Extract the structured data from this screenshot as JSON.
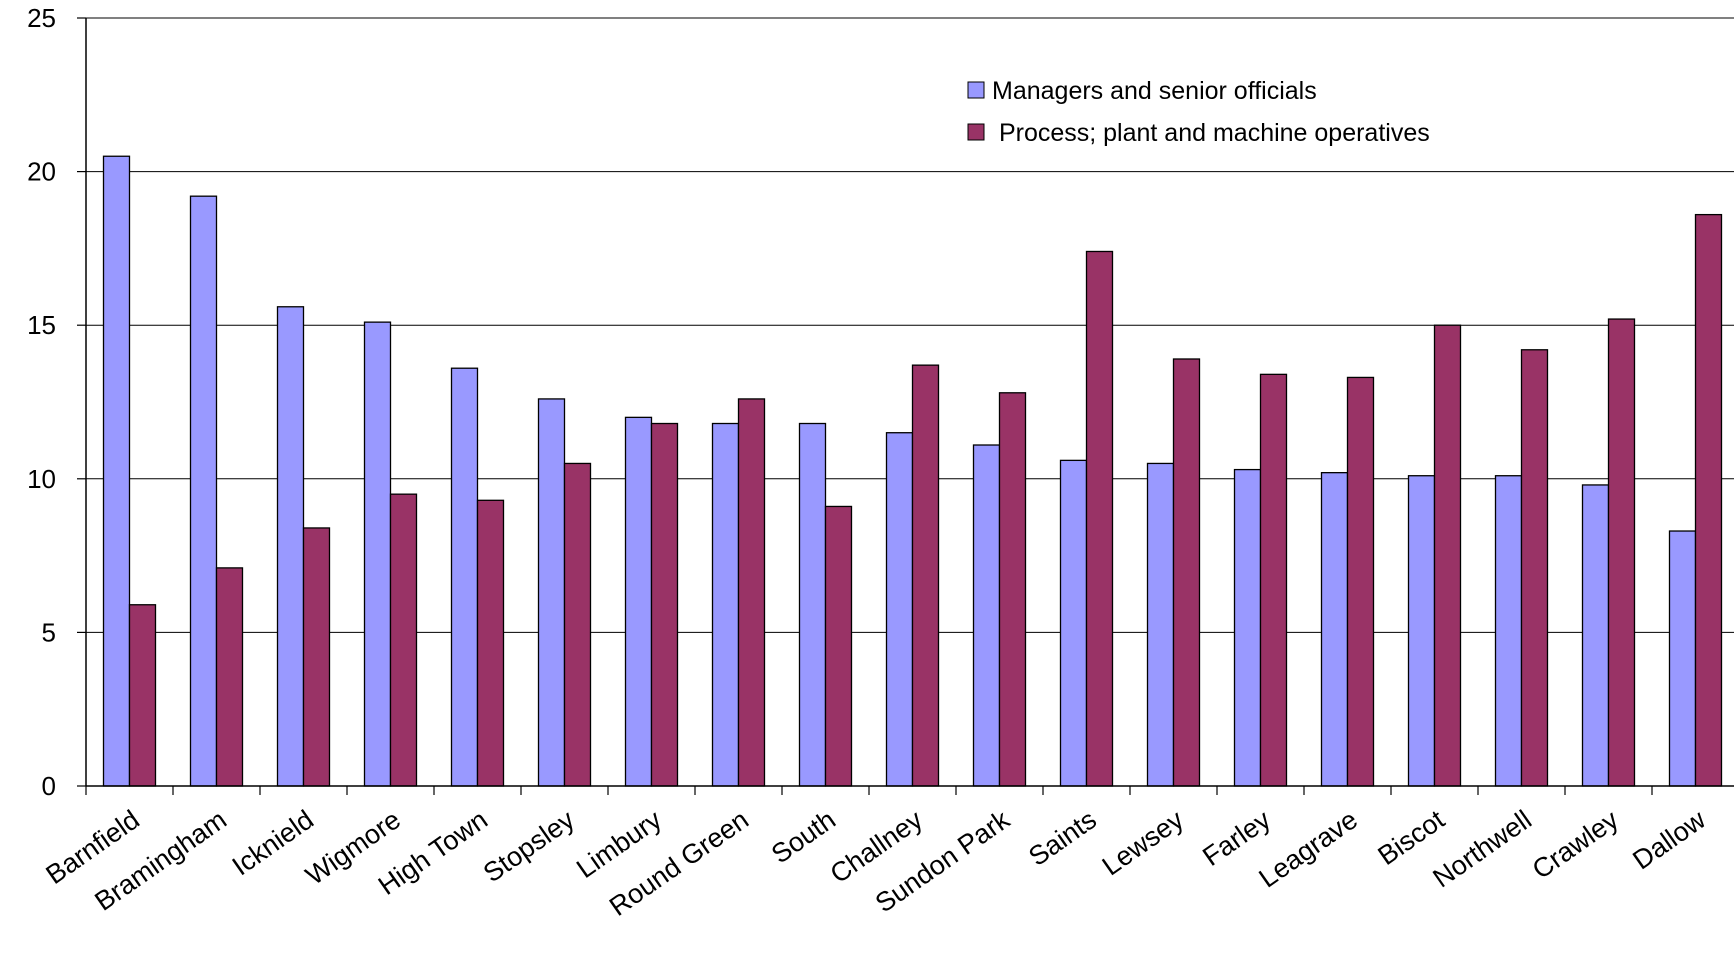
{
  "chart_data": {
    "type": "bar",
    "title": "",
    "xlabel": "",
    "ylabel": "",
    "ylim": [
      0,
      25
    ],
    "yticks": [
      0,
      5,
      10,
      15,
      20,
      25
    ],
    "grid": true,
    "legend_position": "top-right",
    "categories": [
      "Barnfield",
      "Bramingham",
      "Icknield",
      "Wigmore",
      "High Town",
      "Stopsley",
      "Limbury",
      "Round Green",
      "South",
      "Challney",
      "Sundon Park",
      "Saints",
      "Lewsey",
      "Farley",
      "Leagrave",
      "Biscot",
      "Northwell",
      "Crawley",
      "Dallow"
    ],
    "series": [
      {
        "name": "Managers and senior officials",
        "color": "#9999ff",
        "values": [
          20.5,
          19.2,
          15.6,
          15.1,
          13.6,
          12.6,
          12.0,
          11.8,
          11.8,
          11.5,
          11.1,
          10.6,
          10.5,
          10.3,
          10.2,
          10.1,
          10.1,
          9.8,
          8.3
        ]
      },
      {
        "name": " Process; plant and machine operatives",
        "color": "#993366",
        "values": [
          5.9,
          7.1,
          8.4,
          9.5,
          9.3,
          10.5,
          11.8,
          12.6,
          9.1,
          13.7,
          12.8,
          17.4,
          13.9,
          13.4,
          13.3,
          15.0,
          14.2,
          15.2,
          18.6
        ]
      }
    ]
  }
}
